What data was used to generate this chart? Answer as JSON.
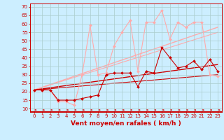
{
  "xlabel": "Vent moyen/en rafales ( km/h )",
  "bg_color": "#cceeff",
  "grid_color": "#aacccc",
  "x_ticks": [
    0,
    1,
    2,
    3,
    4,
    5,
    6,
    7,
    8,
    9,
    10,
    11,
    12,
    13,
    14,
    15,
    16,
    17,
    18,
    19,
    20,
    21,
    22,
    23
  ],
  "y_ticks": [
    10,
    15,
    20,
    25,
    30,
    35,
    40,
    45,
    50,
    55,
    60,
    65,
    70
  ],
  "ylim": [
    8,
    72
  ],
  "xlim": [
    -0.5,
    23.5
  ],
  "line1_x": [
    0,
    1,
    2,
    3,
    4,
    5,
    6,
    7,
    8,
    9,
    10,
    11,
    12,
    13,
    14,
    15,
    16,
    17,
    18,
    19,
    20,
    21,
    22,
    23
  ],
  "line1_y": [
    21,
    21,
    21,
    14,
    14,
    12,
    30,
    59,
    30,
    31,
    47,
    55,
    62,
    32,
    61,
    61,
    68,
    51,
    61,
    58,
    61,
    61,
    30,
    29
  ],
  "line1_color": "#ffaaaa",
  "line1_marker": "D",
  "line1_ms": 2.0,
  "line2_x": [
    0,
    1,
    2,
    3,
    4,
    5,
    6,
    7,
    8,
    9,
    10,
    11,
    12,
    13,
    14,
    15,
    16,
    17,
    18,
    19,
    20,
    21,
    22,
    23
  ],
  "line2_y": [
    21,
    21,
    21,
    15,
    15,
    15,
    16,
    17,
    18,
    30,
    31,
    31,
    31,
    23,
    32,
    31,
    46,
    40,
    34,
    35,
    38,
    33,
    39,
    32
  ],
  "line2_color": "#cc0000",
  "line2_marker": "D",
  "line2_ms": 2.0,
  "trend1_x": [
    0,
    23
  ],
  "trend1_y": [
    21,
    58
  ],
  "trend1_color": "#ffaaaa",
  "trend1_lw": 1.0,
  "trend2_x": [
    0,
    23
  ],
  "trend2_y": [
    21,
    55
  ],
  "trend2_color": "#ffaaaa",
  "trend2_lw": 0.8,
  "trend3_x": [
    0,
    23
  ],
  "trend3_y": [
    21,
    36
  ],
  "trend3_color": "#cc0000",
  "trend3_lw": 1.0,
  "trend4_x": [
    0,
    23
  ],
  "trend4_y": [
    21,
    30
  ],
  "trend4_color": "#cc0000",
  "trend4_lw": 0.8,
  "red_line_y": 8.5,
  "arrow_color": "#cc0000",
  "tick_color": "#cc0000",
  "label_color": "#cc0000",
  "axis_color": "#cc0000",
  "tick_fontsize": 5.0,
  "xlabel_fontsize": 6.5
}
